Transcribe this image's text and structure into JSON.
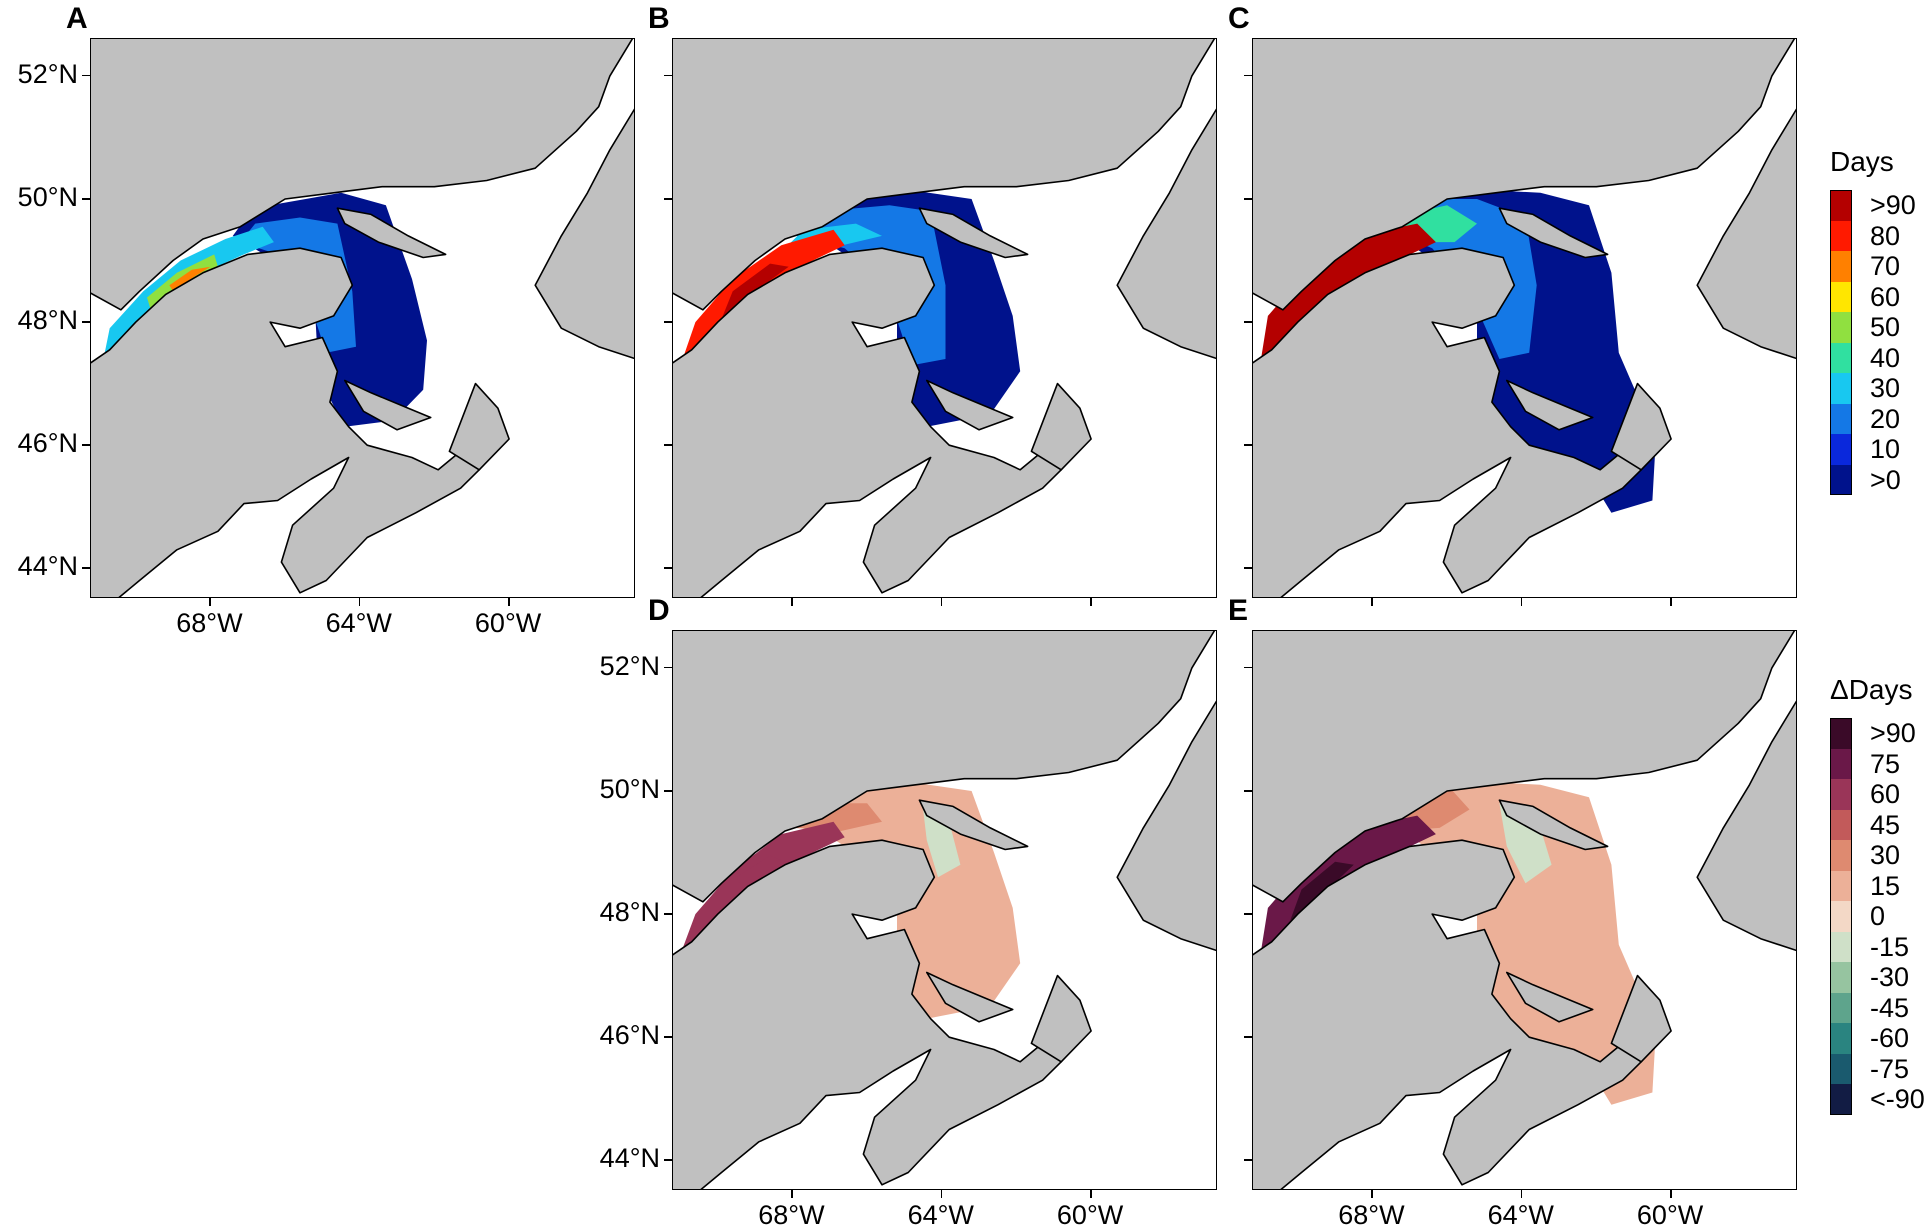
{
  "panels": [
    {
      "id": "A",
      "label": "A",
      "layer": "days",
      "show_lat": true,
      "show_lon": true
    },
    {
      "id": "B",
      "label": "B",
      "layer": "days",
      "show_lat": false,
      "show_lon": false
    },
    {
      "id": "C",
      "label": "C",
      "layer": "days",
      "show_lat": false,
      "show_lon": false
    },
    {
      "id": "D",
      "label": "D",
      "layer": "delta",
      "show_lat": true,
      "show_lon": true
    },
    {
      "id": "E",
      "label": "E",
      "layer": "delta",
      "show_lat": false,
      "show_lon": true
    }
  ],
  "latitude_ticks": [
    "52°N",
    "50°N",
    "48°N",
    "46°N",
    "44°N"
  ],
  "longitude_ticks": [
    "68°W",
    "64°W",
    "60°W"
  ],
  "colors": {
    "land": "#c0c0c0",
    "water": "#ffffff",
    "border": "#000000"
  },
  "legend_days": {
    "title": "Days",
    "labels": [
      ">90",
      "80",
      "70",
      "60",
      "50",
      "40",
      "30",
      "20",
      "10",
      ">0"
    ],
    "colors": [
      "#b40000",
      "#ff1a00",
      "#ff8000",
      "#ffe600",
      "#90e040",
      "#30e0a0",
      "#18c8f0",
      "#1478e6",
      "#0a28dc",
      "#00128c"
    ]
  },
  "legend_delta": {
    "title": "ΔDays",
    "labels": [
      ">90",
      "75",
      "60",
      "45",
      "30",
      "15",
      "0",
      "-15",
      "-30",
      "-45",
      "-60",
      "-75",
      "<-90"
    ],
    "colors": [
      "#3a0a28",
      "#6a1848",
      "#9a3558",
      "#c25a5a",
      "#de8a70",
      "#ecb098",
      "#f3d8c6",
      "#cfe0c8",
      "#96c4a0",
      "#5ea48c",
      "#2a8480",
      "#1a5a6e",
      "#121c44"
    ]
  }
}
